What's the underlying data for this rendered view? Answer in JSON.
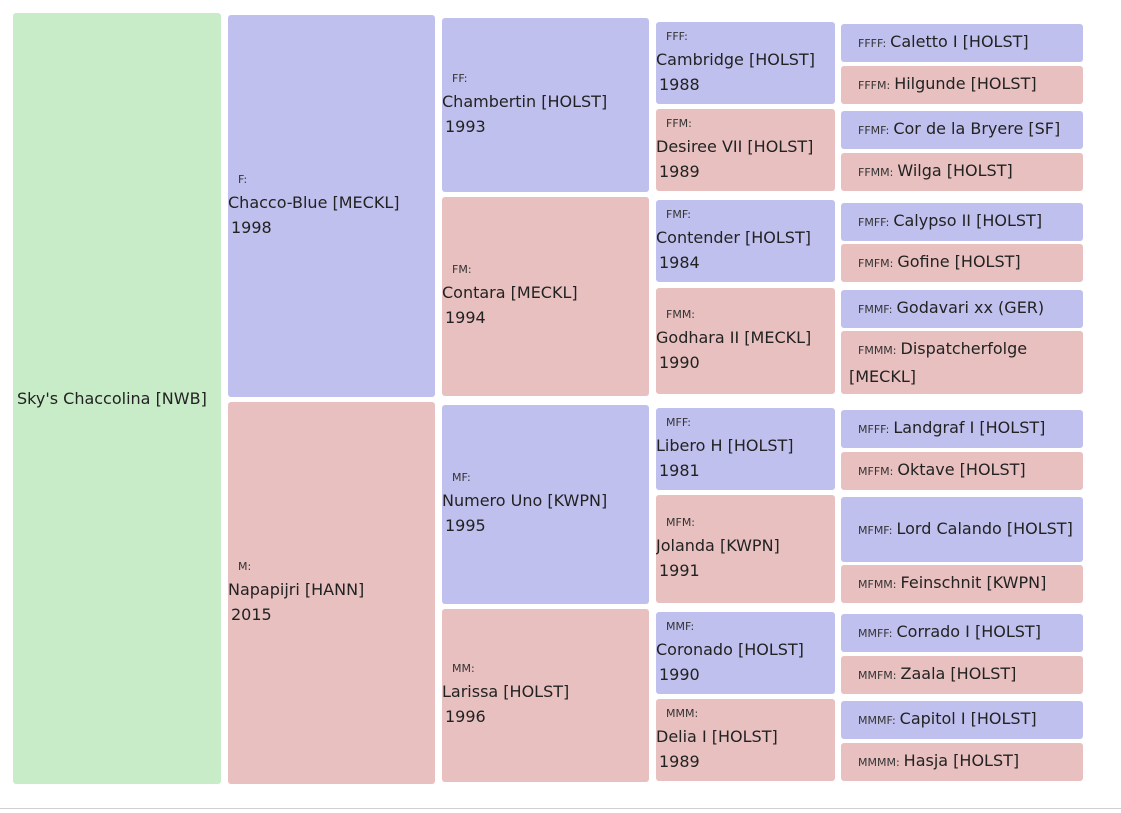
{
  "subject": {
    "name": "Sky's Chaccolina [NWB]"
  },
  "colors": {
    "subject": "#c8ecc8",
    "male": "#c0c0ee",
    "female": "#e8c0c0"
  },
  "gen1": [
    {
      "code": "F:",
      "name": "Chacco-Blue [MECKL]",
      "year": "1998"
    },
    {
      "code": "M:",
      "name": "Napapijri [HANN]",
      "year": "2015"
    }
  ],
  "gen2": [
    {
      "code": "FF:",
      "name": "Chambertin [HOLST]",
      "year": "1993"
    },
    {
      "code": "FM:",
      "name": "Contara [MECKL]",
      "year": "1994"
    },
    {
      "code": "MF:",
      "name": "Numero Uno [KWPN]",
      "year": "1995"
    },
    {
      "code": "MM:",
      "name": "Larissa [HOLST]",
      "year": "1996"
    }
  ],
  "gen3": [
    {
      "code": "FFF:",
      "name": "Cambridge [HOLST]",
      "year": "1988"
    },
    {
      "code": "FFM:",
      "name": "Desiree VII [HOLST]",
      "year": "1989"
    },
    {
      "code": "FMF:",
      "name": "Contender [HOLST]",
      "year": "1984"
    },
    {
      "code": "FMM:",
      "name": "Godhara II [MECKL]",
      "year": "1990"
    },
    {
      "code": "MFF:",
      "name": "Libero H [HOLST]",
      "year": "1981"
    },
    {
      "code": "MFM:",
      "name": "Jolanda [KWPN]",
      "year": "1991"
    },
    {
      "code": "MMF:",
      "name": "Coronado [HOLST]",
      "year": "1990"
    },
    {
      "code": "MMM:",
      "name": "Delia I [HOLST]",
      "year": "1989"
    }
  ],
  "gen4": [
    {
      "code": "FFFF:",
      "name": "Caletto I [HOLST]"
    },
    {
      "code": "FFFM:",
      "name": "Hilgunde [HOLST]"
    },
    {
      "code": "FFMF:",
      "name": "Cor de la Bryere [SF]"
    },
    {
      "code": "FFMM:",
      "name": "Wilga [HOLST]"
    },
    {
      "code": "FMFF:",
      "name": "Calypso II [HOLST]"
    },
    {
      "code": "FMFM:",
      "name": "Gofine [HOLST]"
    },
    {
      "code": "FMMF:",
      "name": "Godavari xx (GER)"
    },
    {
      "code": "FMMM:",
      "name": "Dispatcherfolge [MECKL]"
    },
    {
      "code": "MFFF:",
      "name": "Landgraf I [HOLST]"
    },
    {
      "code": "MFFM:",
      "name": "Oktave [HOLST]"
    },
    {
      "code": "MFMF:",
      "name": "Lord Calando [HOLST]"
    },
    {
      "code": "MFMM:",
      "name": "Feinschnit [KWPN]"
    },
    {
      "code": "MMFF:",
      "name": "Corrado I [HOLST]"
    },
    {
      "code": "MMFM:",
      "name": "Zaala [HOLST]"
    },
    {
      "code": "MMMF:",
      "name": "Capitol I [HOLST]"
    },
    {
      "code": "MMMM:",
      "name": "Hasja [HOLST]"
    }
  ]
}
